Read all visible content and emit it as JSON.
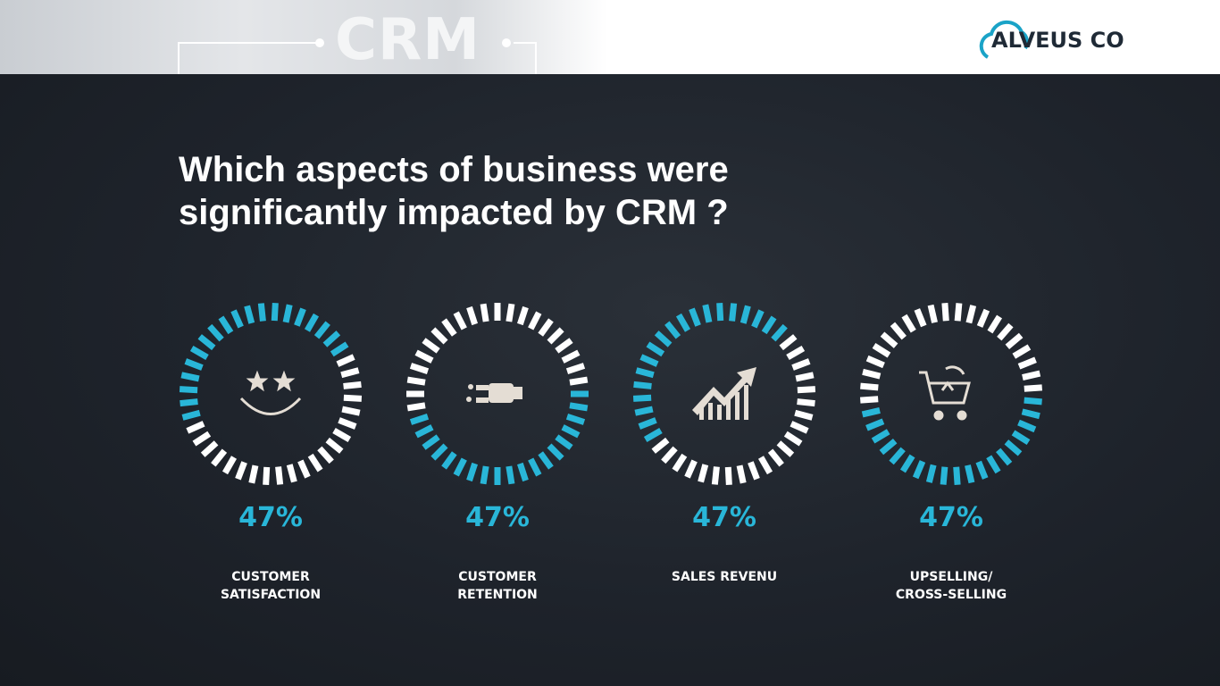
{
  "header": {
    "banner_text": "CRM",
    "brand": "ALVEUS CO"
  },
  "chart_data": {
    "type": "ring",
    "title": "Which aspects of business were significantly impacted by CRM ?",
    "categories": [
      "CUSTOMER SATISFACTION",
      "CUSTOMER RETENTION",
      "SALES REVENU",
      "UPSELLING/ CROSS-SELLING"
    ],
    "values": [
      47,
      47,
      47,
      47
    ],
    "value_labels": [
      "47%",
      "47%",
      "47%",
      "47%"
    ],
    "ylim": [
      0,
      100
    ],
    "color": "#29b6d8"
  }
}
